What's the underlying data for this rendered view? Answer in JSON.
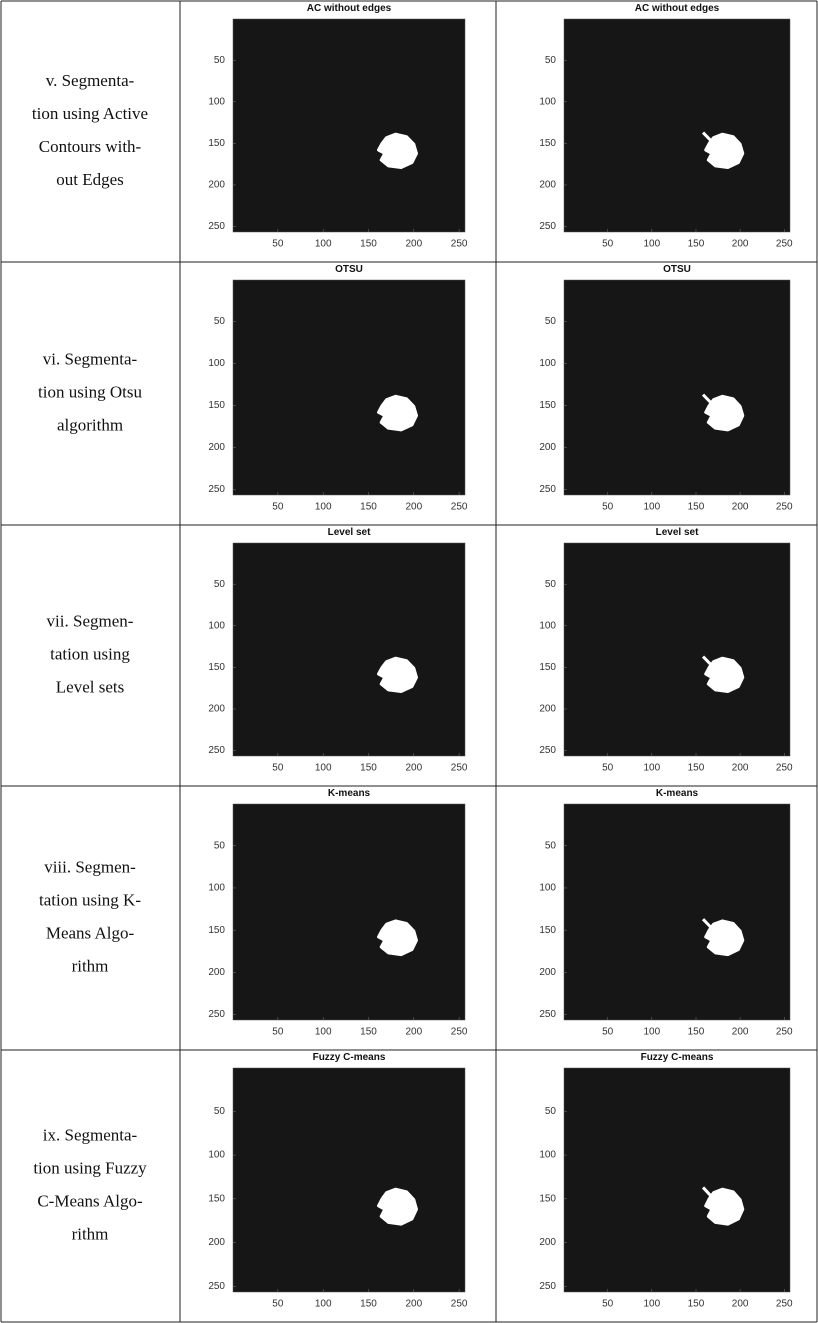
{
  "rows": [
    {
      "label": [
        "v. Segmenta-",
        "tion using Active",
        "Contours with-",
        "out Edges"
      ],
      "plots": [
        {
          "title": "AC without edges",
          "xlim": [
            0.5,
            256.5
          ],
          "ylim": [
            0.5,
            256.5
          ],
          "xticks": [
            50,
            100,
            150,
            200,
            250
          ],
          "yticks": [
            50,
            100,
            150,
            200,
            250
          ]
        },
        {
          "title": "AC without edges",
          "xlim": [
            0.5,
            256.5
          ],
          "ylim": [
            0.5,
            256.5
          ],
          "xticks": [
            50,
            100,
            150,
            200,
            250
          ],
          "yticks": [
            50,
            100,
            150,
            200,
            250
          ]
        }
      ]
    },
    {
      "label": [
        "vi. Segmenta-",
        "tion using Otsu",
        "algorithm"
      ],
      "plots": [
        {
          "title": "OTSU",
          "xlim": [
            0.5,
            256.5
          ],
          "ylim": [
            0.5,
            256.5
          ],
          "xticks": [
            50,
            100,
            150,
            200,
            250
          ],
          "yticks": [
            50,
            100,
            150,
            200,
            250
          ]
        },
        {
          "title": "OTSU",
          "xlim": [
            0.5,
            256.5
          ],
          "ylim": [
            0.5,
            256.5
          ],
          "xticks": [
            50,
            100,
            150,
            200,
            250
          ],
          "yticks": [
            50,
            100,
            150,
            200,
            250
          ]
        }
      ]
    },
    {
      "label": [
        "vii. Segmen-",
        "tation using",
        "Level sets"
      ],
      "plots": [
        {
          "title": "Level set",
          "xlim": [
            0.5,
            256.5
          ],
          "ylim": [
            0.5,
            256.5
          ],
          "xticks": [
            50,
            100,
            150,
            200,
            250
          ],
          "yticks": [
            50,
            100,
            150,
            200,
            250
          ]
        },
        {
          "title": "Level set",
          "xlim": [
            0.5,
            256.5
          ],
          "ylim": [
            0.5,
            256.5
          ],
          "xticks": [
            50,
            100,
            150,
            200,
            250
          ],
          "yticks": [
            50,
            100,
            150,
            200,
            250
          ]
        }
      ]
    },
    {
      "label": [
        "viii. Segmen-",
        "tation using K-",
        "Means Algo-",
        "rithm"
      ],
      "plots": [
        {
          "title": "K-means",
          "xlim": [
            0.5,
            256.5
          ],
          "ylim": [
            0.5,
            256.5
          ],
          "xticks": [
            50,
            100,
            150,
            200,
            250
          ],
          "yticks": [
            50,
            100,
            150,
            200,
            250
          ]
        },
        {
          "title": "K-means",
          "xlim": [
            0.5,
            256.5
          ],
          "ylim": [
            0.5,
            256.5
          ],
          "xticks": [
            50,
            100,
            150,
            200,
            250
          ],
          "yticks": [
            50,
            100,
            150,
            200,
            250
          ]
        }
      ]
    },
    {
      "label": [
        "ix. Segmenta-",
        "tion using Fuzzy",
        "C-Means Algo-",
        "rithm"
      ],
      "plots": [
        {
          "title": "Fuzzy C-means",
          "xlim": [
            0.5,
            256.5
          ],
          "ylim": [
            0.5,
            256.5
          ],
          "xticks": [
            50,
            100,
            150,
            200,
            250
          ],
          "yticks": [
            50,
            100,
            150,
            200,
            250
          ]
        },
        {
          "title": "Fuzzy C-means",
          "xlim": [
            0.5,
            256.5
          ],
          "ylim": [
            0.5,
            256.5
          ],
          "xticks": [
            50,
            100,
            150,
            200,
            250
          ],
          "yticks": [
            50,
            100,
            150,
            200,
            250
          ]
        }
      ]
    }
  ]
}
